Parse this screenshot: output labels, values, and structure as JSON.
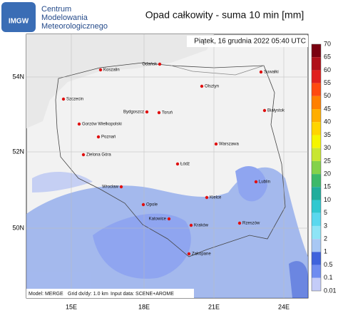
{
  "header": {
    "logo": "IMGW",
    "org_lines": [
      "Centrum",
      "Modelowania",
      "Meteorologicznego"
    ],
    "title": "Opad całkowity - suma 10 min [mm]",
    "timestamp": "Piątek, 16 grudnia 2022 05:40 UTC"
  },
  "map": {
    "lat_labels": [
      "54N",
      "52N",
      "50N"
    ],
    "lon_labels": [
      "15E",
      "18E",
      "21E",
      "24E"
    ],
    "cities": [
      "Koszalin",
      "Gdańsk",
      "Suwałki",
      "Olsztyn",
      "Szczecin",
      "Bydgoszcz",
      "Toruń",
      "Białystok",
      "Gorzów Wielkopolski",
      "Poznań",
      "Warszawa",
      "Zielona Góra",
      "Łódź",
      "Wrocław",
      "Lublin",
      "Kielce",
      "Opole",
      "Katowice",
      "Kraków",
      "Rzeszów",
      "Zakopane"
    ],
    "footer": [
      "Model: MERGE",
      "Grid dx/dy: 1.0 km",
      "Input data: SCENE+AROME"
    ]
  },
  "legend": {
    "levels": [
      70,
      65,
      60,
      55,
      50,
      45,
      40,
      35,
      30,
      25,
      20,
      15,
      10,
      5,
      3,
      2,
      1,
      0.5,
      0.1,
      0.01
    ],
    "colors": [
      "#7a0010",
      "#b0101a",
      "#e0201e",
      "#ff4a10",
      "#ff8000",
      "#ffae00",
      "#ffd500",
      "#f5f500",
      "#c8e632",
      "#84d24a",
      "#3cb96a",
      "#20ad9c",
      "#30c8d0",
      "#5ad8ee",
      "#8ee4f6",
      "#a8c8f4",
      "#3f63dc",
      "#6f8cf0",
      "#c4ccf8"
    ]
  }
}
